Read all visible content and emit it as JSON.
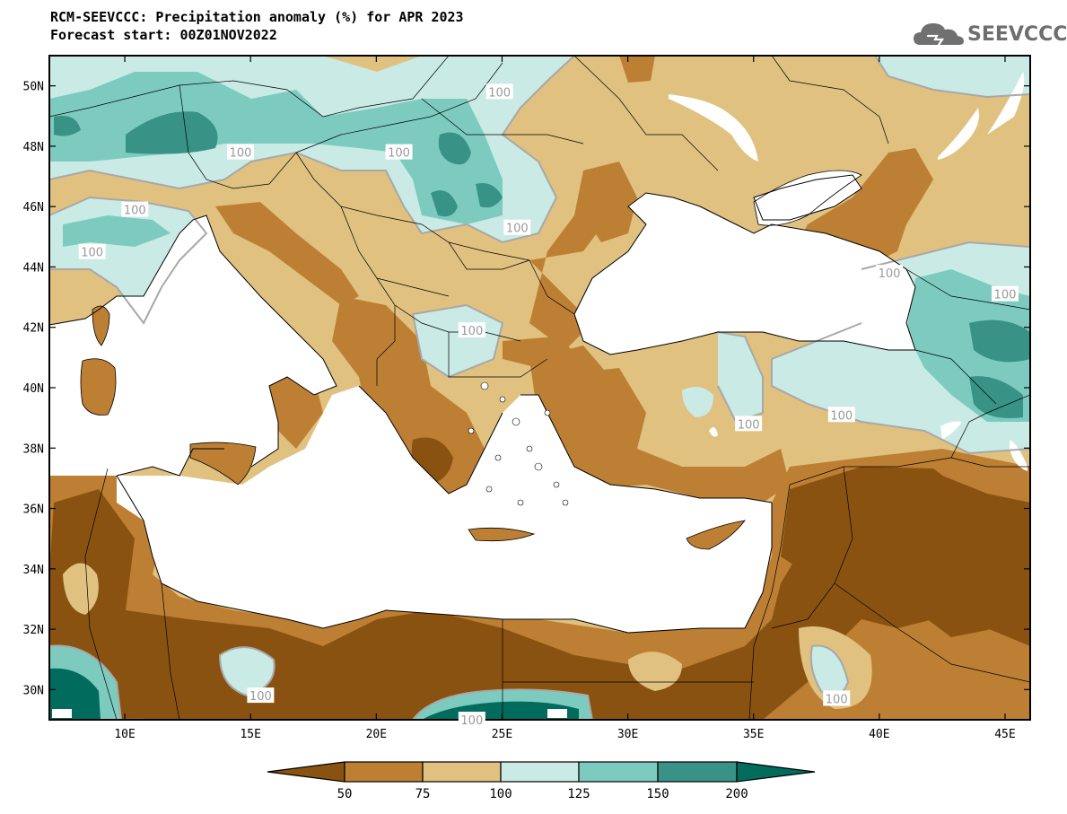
{
  "header": {
    "title_line1": "RCM-SEEVCCC: Precipitation anomaly (%) for APR 2023",
    "title_line2": "Forecast start: 00Z01NOV2022"
  },
  "logo": {
    "text": "SEEVCCC",
    "icon": "cloud-logo-icon",
    "color": "#707070"
  },
  "map": {
    "lon_range": [
      7,
      46
    ],
    "lat_range": [
      29,
      51
    ],
    "lon_ticks": [
      "10E",
      "15E",
      "20E",
      "25E",
      "30E",
      "35E",
      "40E",
      "45E"
    ],
    "lat_ticks": [
      "30N",
      "32N",
      "34N",
      "36N",
      "38N",
      "40N",
      "42N",
      "44N",
      "46N",
      "48N",
      "50N"
    ],
    "contour_labels": [
      {
        "text": "100",
        "lon": 24.9,
        "lat": 49.8
      },
      {
        "text": "100",
        "lon": 14.6,
        "lat": 47.8
      },
      {
        "text": "100",
        "lon": 20.9,
        "lat": 47.8
      },
      {
        "text": "100",
        "lon": 10.4,
        "lat": 45.9
      },
      {
        "text": "100",
        "lon": 8.7,
        "lat": 44.5
      },
      {
        "text": "100",
        "lon": 25.6,
        "lat": 45.3
      },
      {
        "text": "100",
        "lon": 23.8,
        "lat": 41.9
      },
      {
        "text": "100",
        "lon": 40.4,
        "lat": 43.8
      },
      {
        "text": "100",
        "lon": 45.0,
        "lat": 43.1
      },
      {
        "text": "100",
        "lon": 38.5,
        "lat": 39.1
      },
      {
        "text": "100",
        "lon": 34.8,
        "lat": 38.8
      },
      {
        "text": "100",
        "lon": 15.4,
        "lat": 29.8
      },
      {
        "text": "100",
        "lon": 38.3,
        "lat": 29.7
      },
      {
        "text": "100",
        "lon": 23.8,
        "lat": 29.0
      }
    ],
    "palette": {
      "lt50": "#8a5210",
      "b50_75": "#bd7f33",
      "b75_100": "#e0c180",
      "b100_125": "#c9eae5",
      "b125_150": "#7dcbbf",
      "b150_200": "#389286",
      "gt200": "#016c5e",
      "sea": "#ffffff"
    }
  },
  "colorbar": {
    "levels": [
      "50",
      "75",
      "100",
      "125",
      "150",
      "200"
    ],
    "colors": [
      "#8a5210",
      "#bd7f33",
      "#e0c180",
      "#c9eae5",
      "#7dcbbf",
      "#389286",
      "#016c5e"
    ]
  }
}
